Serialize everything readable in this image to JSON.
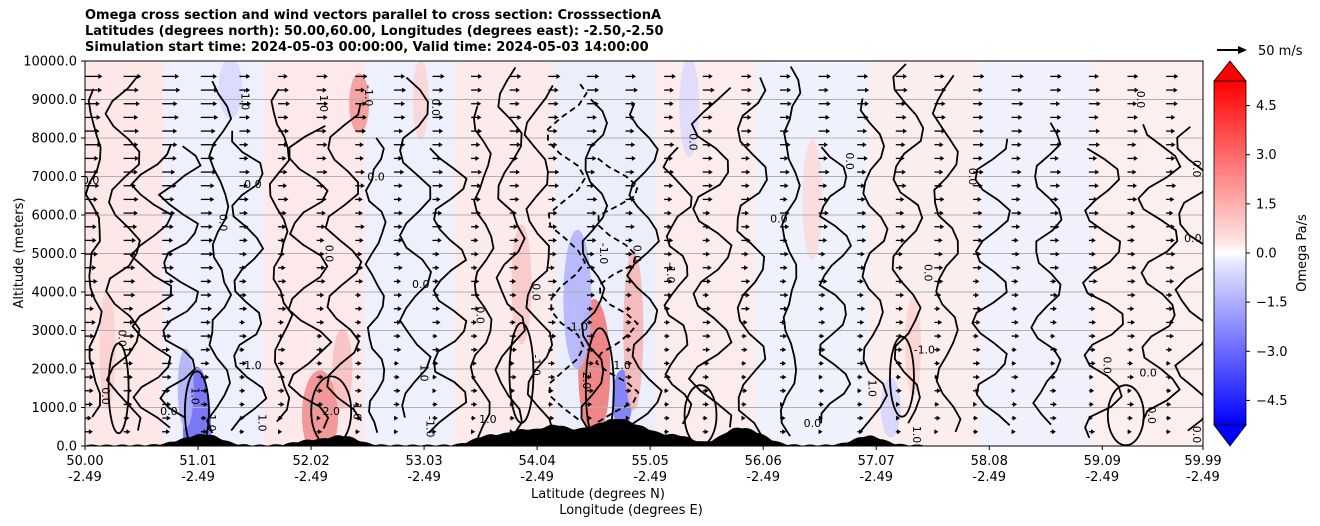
{
  "chart_data": {
    "type": "heatmap",
    "title_lines": [
      "Omega cross section and wind vectors parallel to cross section: CrosssectionA",
      "Latitudes (degrees north): 50.00,60.00, Longitudes (degrees east): -2.50,-2.50",
      "Simulation start time: 2024-05-03 00:00:00, Valid time: 2024-05-03 14:00:00"
    ],
    "ylabel": "Altitude (meters)",
    "xlabel_lines": [
      "Latitude (degrees N)",
      "Longitude (degrees E)"
    ],
    "ylim": [
      0,
      10000
    ],
    "y_ticks": [
      "0.0",
      "1000.0",
      "2000.0",
      "3000.0",
      "4000.0",
      "5000.0",
      "6000.0",
      "7000.0",
      "8000.0",
      "9000.0",
      "10000.0"
    ],
    "y_tick_values": [
      0,
      1000,
      2000,
      3000,
      4000,
      5000,
      6000,
      7000,
      8000,
      9000,
      10000
    ],
    "x_range": [
      50.0,
      59.99
    ],
    "x_ticks": [
      {
        "lat": "50.00",
        "lon": "-2.49",
        "value": 50.0
      },
      {
        "lat": "51.01",
        "lon": "-2.49",
        "value": 51.01
      },
      {
        "lat": "52.02",
        "lon": "-2.49",
        "value": 52.02
      },
      {
        "lat": "53.03",
        "lon": "-2.49",
        "value": 53.03
      },
      {
        "lat": "54.04",
        "lon": "-2.49",
        "value": 54.04
      },
      {
        "lat": "55.05",
        "lon": "-2.49",
        "value": 55.05
      },
      {
        "lat": "56.06",
        "lon": "-2.49",
        "value": 56.06
      },
      {
        "lat": "57.07",
        "lon": "-2.49",
        "value": 57.07
      },
      {
        "lat": "58.08",
        "lon": "-2.49",
        "value": 58.08
      },
      {
        "lat": "59.09",
        "lon": "-2.49",
        "value": 59.09
      },
      {
        "lat": "59.99",
        "lon": "-2.49",
        "value": 59.99
      }
    ],
    "grid": "horizontal",
    "colorbar": {
      "label": "Omega Pa/s",
      "range": [
        -5.25,
        5.25
      ],
      "ticks": [
        "−4.5",
        "−3.0",
        "−1.5",
        "0.0",
        "1.5",
        "3.0",
        "4.5"
      ],
      "tick_values": [
        -4.5,
        -3.0,
        -1.5,
        0.0,
        1.5,
        3.0,
        4.5
      ],
      "low_color": "#0000ff",
      "mid_color": "#ffffff",
      "high_color": "#ff0000"
    },
    "reference_vector": {
      "label": "50 m/s",
      "speed": 50
    },
    "contour_labels": [
      {
        "text": "0.0",
        "lat": 50.05,
        "alt": 6800
      },
      {
        "text": "0.0",
        "lat": 50.3,
        "alt": 2800
      },
      {
        "text": "0.0",
        "lat": 50.15,
        "alt": 1300
      },
      {
        "text": "0.0",
        "lat": 50.75,
        "alt": 800
      },
      {
        "text": "1.0",
        "lat": 50.95,
        "alt": 1300
      },
      {
        "text": "1.0",
        "lat": 51.1,
        "alt": 600
      },
      {
        "text": "0.0",
        "lat": 51.5,
        "alt": 6700
      },
      {
        "text": "0.0",
        "lat": 51.2,
        "alt": 5800
      },
      {
        "text": "-1.0",
        "lat": 51.4,
        "alt": 9000
      },
      {
        "text": "1.0",
        "lat": 51.5,
        "alt": 2000
      },
      {
        "text": "1.0",
        "lat": 51.55,
        "alt": 600
      },
      {
        "text": "0.0",
        "lat": 52.15,
        "alt": 5000
      },
      {
        "text": "0.0",
        "lat": 52.6,
        "alt": 6900
      },
      {
        "text": "1.0",
        "lat": 52.1,
        "alt": 8900
      },
      {
        "text": "-1.0",
        "lat": 52.5,
        "alt": 9100
      },
      {
        "text": "2.0",
        "lat": 52.2,
        "alt": 800
      },
      {
        "text": "1.0",
        "lat": 52.4,
        "alt": 900
      },
      {
        "text": "1.0",
        "lat": 53.0,
        "alt": 1900
      },
      {
        "text": "0.0",
        "lat": 53.0,
        "alt": 4100
      },
      {
        "text": "0.0",
        "lat": 53.1,
        "alt": 8800
      },
      {
        "text": "-1.0",
        "lat": 53.05,
        "alt": 500
      },
      {
        "text": "0.0",
        "lat": 53.6,
        "alt": 10000
      },
      {
        "text": "0.0",
        "lat": 53.5,
        "alt": 3400
      },
      {
        "text": "0.0",
        "lat": 54.0,
        "alt": 4000
      },
      {
        "text": "1.0",
        "lat": 53.6,
        "alt": 600
      },
      {
        "text": "0.0",
        "lat": 54.9,
        "alt": 5000
      },
      {
        "text": "-1.0",
        "lat": 54.6,
        "alt": 5000
      },
      {
        "text": "-1.0",
        "lat": 54.4,
        "alt": 3000
      },
      {
        "text": "-1.0",
        "lat": 54.0,
        "alt": 2100
      },
      {
        "text": "2.0",
        "lat": 54.45,
        "alt": 1700
      },
      {
        "text": "1.0",
        "lat": 54.8,
        "alt": 2000
      },
      {
        "text": "-1.0",
        "lat": 55.2,
        "alt": 4500
      },
      {
        "text": "0.0",
        "lat": 55.4,
        "alt": 7900
      },
      {
        "text": "0.0",
        "lat": 56.2,
        "alt": 5800
      },
      {
        "text": "0.0",
        "lat": 56.8,
        "alt": 7400
      },
      {
        "text": "0.0",
        "lat": 57.5,
        "alt": 4500
      },
      {
        "text": "-1.0",
        "lat": 57.5,
        "alt": 2400
      },
      {
        "text": "0.0",
        "lat": 57.9,
        "alt": 7000
      },
      {
        "text": "0.0",
        "lat": 59.4,
        "alt": 9000
      },
      {
        "text": "0.0",
        "lat": 59.5,
        "alt": 1800
      },
      {
        "text": "0.0",
        "lat": 59.5,
        "alt": 800
      },
      {
        "text": "0.0",
        "lat": 59.9,
        "alt": 7200
      },
      {
        "text": "0.0",
        "lat": 59.9,
        "alt": 5300
      },
      {
        "text": "0.0",
        "lat": 59.1,
        "alt": 2100
      },
      {
        "text": "1.0",
        "lat": 57.0,
        "alt": 1500
      },
      {
        "text": "0.0",
        "lat": 56.5,
        "alt": 500
      },
      {
        "text": "0.0",
        "lat": 59.9,
        "alt": 300
      },
      {
        "text": "1.0",
        "lat": 57.4,
        "alt": 300
      }
    ]
  }
}
